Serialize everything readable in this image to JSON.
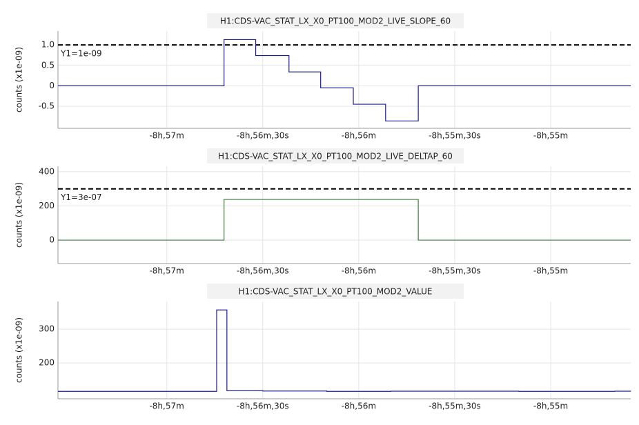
{
  "chart_data": [
    {
      "type": "line",
      "drawstyle": "steps-post",
      "title": "H1:CDS-VAC_STAT_LX_X0_PT100_MOD2_LIVE_SLOPE_60",
      "ylabel": "counts (x1e-09)",
      "x": [
        -32254,
        -32202.1,
        -32192.2,
        -32181.8,
        -32171.9,
        -32161.7,
        -32151.6,
        -32141.4,
        -32075
      ],
      "values": [
        0,
        1.13,
        0.74,
        0.34,
        -0.05,
        -0.45,
        -0.86,
        0,
        0
      ],
      "color": "#1c1c86",
      "xlim": [
        -32254,
        -32075
      ],
      "xticks": [
        {
          "value": -32220,
          "label": "-8h,57m"
        },
        {
          "value": -32190,
          "label": "-8h,56m,30s"
        },
        {
          "value": -32160,
          "label": "-8h,56m"
        },
        {
          "value": -32130,
          "label": "-8h,55m,30s"
        },
        {
          "value": -32100,
          "label": "-8h,55m"
        }
      ],
      "ylim": [
        -1.04,
        1.34
      ],
      "yticks": [
        {
          "value": 1,
          "label": "1.0"
        },
        0.5,
        0,
        -0.5
      ],
      "threshold": {
        "value": 1,
        "label": "Y1=1e-09"
      },
      "grid": true
    },
    {
      "type": "line",
      "drawstyle": "steps-post",
      "title": "H1:CDS-VAC_STAT_LX_X0_PT100_MOD2_LIVE_DELTAP_60",
      "ylabel": "counts (x1e-09)",
      "x": [
        -32254,
        -32202.1,
        -32141.4,
        -32075
      ],
      "values": [
        0,
        238,
        0,
        0
      ],
      "color": "#3d7a3d",
      "xlim": [
        -32254,
        -32075
      ],
      "xticks": [
        {
          "value": -32220,
          "label": "-8h,57m"
        },
        {
          "value": -32190,
          "label": "-8h,56m,30s"
        },
        {
          "value": -32160,
          "label": "-8h,56m"
        },
        {
          "value": -32130,
          "label": "-8h,55m,30s"
        },
        {
          "value": -32100,
          "label": "-8h,55m"
        }
      ],
      "ylim": [
        -137,
        432
      ],
      "yticks": [
        400,
        200,
        0
      ],
      "threshold": {
        "value": 300,
        "label": "Y1=3e-07"
      },
      "grid": true
    },
    {
      "type": "line",
      "drawstyle": "steps-post",
      "title": "H1:CDS-VAC_STAT_LX_X0_PT100_MOD2_VALUE",
      "ylabel": "counts (x1e-09)",
      "x": [
        -32254,
        -32204.4,
        -32201.2,
        -32190,
        -32180,
        -32170,
        -32150,
        -32110,
        -32080,
        -32075
      ],
      "values": [
        116,
        357,
        118,
        117,
        117,
        116,
        116.5,
        116,
        116.5,
        116
      ],
      "color": "#1c1c86",
      "xlim": [
        -32254,
        -32075
      ],
      "xticks": [
        {
          "value": -32220,
          "label": "-8h,57m"
        },
        {
          "value": -32190,
          "label": "-8h,56m,30s"
        },
        {
          "value": -32160,
          "label": "-8h,56m"
        },
        {
          "value": -32130,
          "label": "-8h,55m,30s"
        },
        {
          "value": -32100,
          "label": "-8h,55m"
        }
      ],
      "ylim": [
        94,
        382
      ],
      "yticks": [
        300,
        200
      ],
      "grid": true
    }
  ]
}
